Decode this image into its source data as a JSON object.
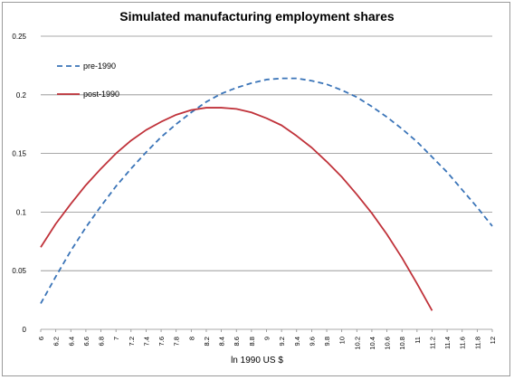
{
  "chart_data": {
    "type": "line",
    "title": "Simulated manufacturing employment shares",
    "xlabel": "ln 1990 US $",
    "ylabel": "",
    "ylim": [
      0,
      0.25
    ],
    "y_ticks": [
      "0",
      "0.05",
      "0.1",
      "0.15",
      "0.2",
      "0.25"
    ],
    "x_ticks": [
      "6",
      "6.2",
      "6.4",
      "6.6",
      "6.8",
      "7",
      "7.2",
      "7.4",
      "7.6",
      "7.8",
      "8",
      "8.2",
      "8.4",
      "8.6",
      "8.8",
      "9",
      "9.2",
      "9.4",
      "9.6",
      "9.8",
      "10",
      "10.2",
      "10.4",
      "10.6",
      "10.8",
      "11",
      "11.2",
      "11.4",
      "11.6",
      "11.8",
      "12"
    ],
    "grid": "horizontal",
    "legend": "top-left",
    "series": [
      {
        "name": "pre-1990",
        "color": "#3a74b8",
        "style": "dashed",
        "x": [
          6,
          6.2,
          6.4,
          6.6,
          6.8,
          7,
          7.2,
          7.4,
          7.6,
          7.8,
          8,
          8.2,
          8.4,
          8.6,
          8.8,
          9,
          9.2,
          9.4,
          9.6,
          9.8,
          10,
          10.2,
          10.4,
          10.6,
          10.8,
          11,
          11.2,
          11.4,
          11.6,
          11.8,
          12
        ],
        "values": [
          0.022,
          0.045,
          0.067,
          0.087,
          0.105,
          0.122,
          0.137,
          0.151,
          0.164,
          0.175,
          0.185,
          0.194,
          0.201,
          0.206,
          0.21,
          0.213,
          0.214,
          0.214,
          0.212,
          0.209,
          0.204,
          0.198,
          0.19,
          0.181,
          0.171,
          0.16,
          0.147,
          0.134,
          0.119,
          0.104,
          0.088
        ]
      },
      {
        "name": "post-1990",
        "color": "#c0323a",
        "style": "solid",
        "x": [
          6,
          6.2,
          6.4,
          6.6,
          6.8,
          7,
          7.2,
          7.4,
          7.6,
          7.8,
          8,
          8.2,
          8.4,
          8.6,
          8.8,
          9,
          9.2,
          9.4,
          9.6,
          9.8,
          10,
          10.2,
          10.4,
          10.6,
          10.8,
          11,
          11.2
        ],
        "values": [
          0.07,
          0.09,
          0.107,
          0.123,
          0.137,
          0.15,
          0.161,
          0.17,
          0.177,
          0.183,
          0.187,
          0.189,
          0.189,
          0.188,
          0.185,
          0.18,
          0.174,
          0.165,
          0.155,
          0.143,
          0.13,
          0.115,
          0.099,
          0.081,
          0.061,
          0.039,
          0.016
        ]
      }
    ]
  }
}
